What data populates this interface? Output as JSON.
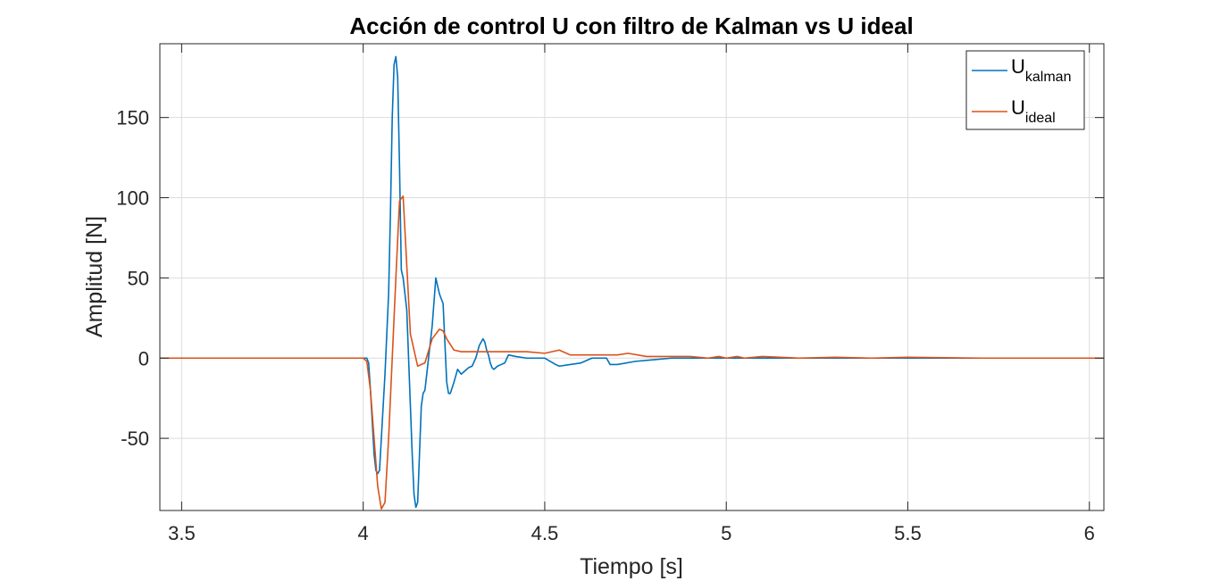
{
  "chart_data": {
    "type": "line",
    "title": "Acción de control U con filtro de Kalman vs U ideal",
    "xlabel": "Tiempo [s]",
    "ylabel": "Amplitud [N]",
    "xlim": [
      3.44,
      6.04
    ],
    "ylim": [
      -95,
      196
    ],
    "xticks": [
      3.5,
      4,
      4.5,
      5,
      5.5,
      6
    ],
    "xtick_labels": [
      "3.5",
      "4",
      "4.5",
      "5",
      "5.5",
      "6"
    ],
    "yticks": [
      -50,
      0,
      50,
      100,
      150
    ],
    "ytick_labels": [
      "-50",
      "0",
      "50",
      "100",
      "150"
    ],
    "grid": true,
    "legend_position": "top-right",
    "legend": [
      {
        "main": "U",
        "sub": "kalman",
        "color": "#0072BD"
      },
      {
        "main": "U",
        "sub": "ideal",
        "color": "#D95319"
      }
    ],
    "series": [
      {
        "name": "U kalman",
        "color": "#0072BD",
        "x": [
          3.44,
          4.0,
          4.01,
          4.015,
          4.02,
          4.025,
          4.03,
          4.035,
          4.04,
          4.045,
          4.05,
          4.06,
          4.07,
          4.075,
          4.08,
          4.085,
          4.09,
          4.095,
          4.1,
          4.105,
          4.11,
          4.12,
          4.125,
          4.13,
          4.135,
          4.14,
          4.145,
          4.15,
          4.155,
          4.16,
          4.165,
          4.17,
          4.175,
          4.18,
          4.19,
          4.2,
          4.21,
          4.22,
          4.23,
          4.235,
          4.24,
          4.25,
          4.26,
          4.27,
          4.28,
          4.29,
          4.3,
          4.31,
          4.32,
          4.33,
          4.335,
          4.34,
          4.345,
          4.35,
          4.355,
          4.36,
          4.37,
          4.38,
          4.39,
          4.4,
          4.42,
          4.45,
          4.5,
          4.53,
          4.54,
          4.6,
          4.63,
          4.65,
          4.67,
          4.68,
          4.7,
          4.75,
          4.8,
          4.85,
          4.9,
          5.0,
          5.1,
          5.3,
          5.5,
          5.7,
          6.04
        ],
        "y": [
          0,
          0,
          0,
          -3,
          -20,
          -40,
          -60,
          -70,
          -72,
          -70,
          -50,
          -10,
          40,
          90,
          150,
          183,
          188,
          175,
          120,
          55,
          50,
          30,
          0,
          -30,
          -60,
          -85,
          -93,
          -90,
          -60,
          -30,
          -22,
          -20,
          -10,
          0,
          20,
          50,
          40,
          34,
          -15,
          -22,
          -22,
          -15,
          -7,
          -10,
          -8,
          -6,
          -5,
          0,
          8,
          12,
          10,
          5,
          2,
          -3,
          -6,
          -7,
          -5,
          -4,
          -3,
          2,
          1,
          0,
          0,
          -4,
          -5,
          -3,
          0,
          0,
          0,
          -4,
          -4,
          -2,
          -1,
          0,
          0,
          0,
          0,
          0,
          0,
          0,
          0
        ]
      },
      {
        "name": "U ideal",
        "color": "#D95319",
        "x": [
          3.44,
          4.0,
          4.01,
          4.02,
          4.03,
          4.04,
          4.05,
          4.06,
          4.07,
          4.08,
          4.09,
          4.1,
          4.11,
          4.13,
          4.15,
          4.17,
          4.19,
          4.21,
          4.22,
          4.23,
          4.25,
          4.27,
          4.3,
          4.4,
          4.45,
          4.5,
          4.54,
          4.57,
          4.6,
          4.65,
          4.7,
          4.73,
          4.78,
          4.85,
          4.9,
          4.95,
          4.98,
          5.0,
          5.03,
          5.05,
          5.1,
          5.2,
          5.3,
          5.4,
          5.5,
          5.7,
          6.04
        ],
        "y": [
          0,
          0,
          -2,
          -20,
          -50,
          -80,
          -94,
          -90,
          -50,
          0,
          50,
          98,
          101,
          15,
          -5,
          -3,
          12,
          18,
          17,
          12,
          5,
          4,
          4,
          4,
          4,
          3,
          5,
          2,
          2,
          2,
          2,
          3,
          1,
          1,
          1,
          0,
          1,
          0,
          1,
          0,
          1,
          0,
          0.5,
          0,
          0.5,
          0,
          0
        ]
      }
    ]
  }
}
